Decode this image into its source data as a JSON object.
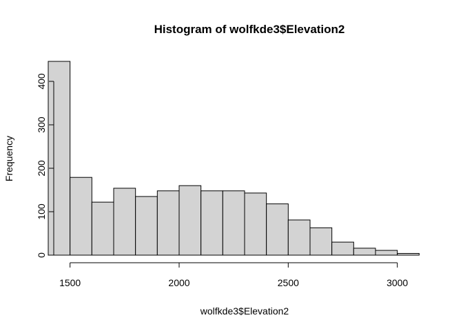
{
  "chart_data": {
    "type": "bar",
    "title": "Histogram of wolfkde3$Elevation2",
    "xlabel": "wolfkde3$Elevation2",
    "ylabel": "Frequency",
    "bin_width": 100,
    "bins": [
      {
        "x0": 1400,
        "x1": 1500,
        "count": 446
      },
      {
        "x0": 1500,
        "x1": 1600,
        "count": 179
      },
      {
        "x0": 1600,
        "x1": 1700,
        "count": 122
      },
      {
        "x0": 1700,
        "x1": 1800,
        "count": 154
      },
      {
        "x0": 1800,
        "x1": 1900,
        "count": 135
      },
      {
        "x0": 1900,
        "x1": 2000,
        "count": 148
      },
      {
        "x0": 2000,
        "x1": 2100,
        "count": 160
      },
      {
        "x0": 2100,
        "x1": 2200,
        "count": 148
      },
      {
        "x0": 2200,
        "x1": 2300,
        "count": 148
      },
      {
        "x0": 2300,
        "x1": 2400,
        "count": 143
      },
      {
        "x0": 2400,
        "x1": 2500,
        "count": 118
      },
      {
        "x0": 2500,
        "x1": 2600,
        "count": 81
      },
      {
        "x0": 2600,
        "x1": 2700,
        "count": 63
      },
      {
        "x0": 2700,
        "x1": 2800,
        "count": 30
      },
      {
        "x0": 2800,
        "x1": 2900,
        "count": 16
      },
      {
        "x0": 2900,
        "x1": 3000,
        "count": 11
      },
      {
        "x0": 3000,
        "x1": 3100,
        "count": 4
      }
    ],
    "xlim": [
      1400,
      3200
    ],
    "ylim": [
      0,
      446
    ],
    "xticks": [
      1500,
      2000,
      2500,
      3000
    ],
    "yticks": [
      0,
      100,
      200,
      300,
      400
    ],
    "bar_color": "#d3d3d3",
    "edge_color": "#000000",
    "grid": false,
    "legend": "none"
  }
}
